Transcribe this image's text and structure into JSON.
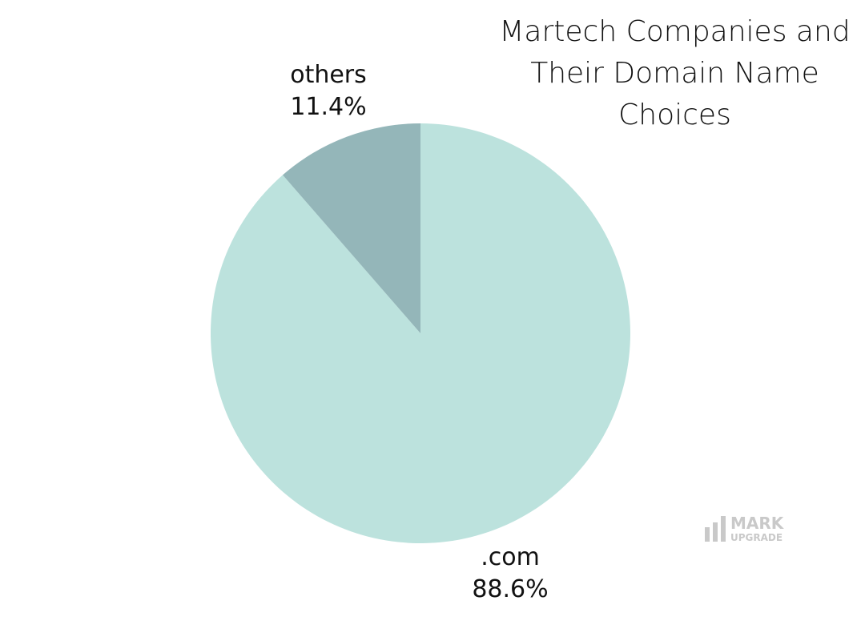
{
  "chart_data": {
    "type": "pie",
    "title": "Martech Companies and Their Domain Name Choices",
    "slices": [
      {
        "label": ".com",
        "value": 88.6,
        "value_label": "88.6%",
        "color": "#bce2dd"
      },
      {
        "label": "others",
        "value": 11.4,
        "value_label": "11.4%",
        "color": "#94b6b9"
      }
    ],
    "start_angle": "12 o'clock",
    "direction": "clockwise"
  },
  "watermark": {
    "line1": "MARK",
    "line2": "UPGRADE",
    "color": "#c9c9c9"
  }
}
